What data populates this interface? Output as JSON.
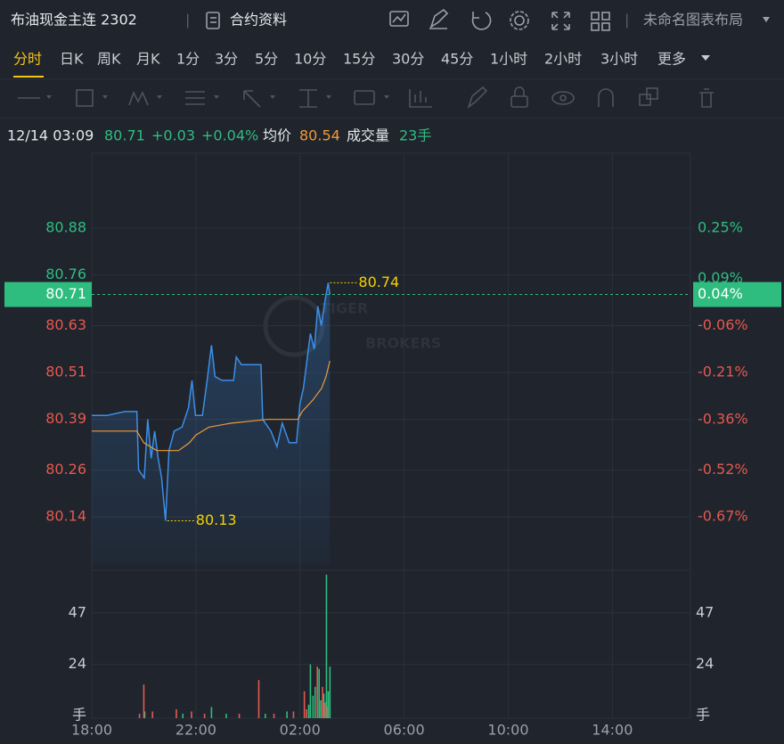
{
  "header": {
    "title": "布油现金主连 2302",
    "contract_info": "合约资料",
    "layout_name": "未命名图表布局"
  },
  "tabs": [
    "分时",
    "日K",
    "周K",
    "月K",
    "1分",
    "3分",
    "5分",
    "10分",
    "15分",
    "30分",
    "45分",
    "1小时",
    "2小时",
    "3小时",
    "更多"
  ],
  "active_tab": 0,
  "info": {
    "datetime": "12/14 03:09",
    "price": "80.71",
    "change": "+0.03",
    "change_percent": "+0.04%",
    "avg_label": "均价",
    "avg_price": "80.54",
    "volume_label": "成交量",
    "volume": "23手"
  },
  "chart_data": {
    "type": "line",
    "xlim": [
      "18:00",
      "17:00"
    ],
    "xticks": [
      "18:00",
      "22:00",
      "02:00",
      "06:00",
      "10:00",
      "14:00"
    ],
    "ylim": [
      80.017,
      81.072
    ],
    "yticks": [
      80.88,
      80.76,
      80.63,
      80.51,
      80.39,
      80.26,
      80.14
    ],
    "y2lim": [
      -0.823,
      0.489
    ],
    "y2ticks": [
      {
        "value": 0.25,
        "label": "0.25%"
      },
      {
        "value": 0.09,
        "label": "0.09%"
      },
      {
        "value": -0.06,
        "label": "-0.06%"
      },
      {
        "value": -0.21,
        "label": "-0.21%"
      },
      {
        "value": -0.36,
        "label": "-0.36%"
      },
      {
        "value": -0.52,
        "label": "-0.52%"
      },
      {
        "value": -0.67,
        "label": "-0.67%"
      }
    ],
    "grid": true,
    "series": [
      {
        "color": "#3b8fe8",
        "x": [
          "18:00",
          "18:35",
          "19:16",
          "19:44",
          "19:48",
          "20:01",
          "20:09",
          "20:17",
          "20:25",
          "20:33",
          "20:41",
          "20:50",
          "20:58",
          "21:10",
          "21:28",
          "21:43",
          "21:51",
          "21:59",
          "22:15",
          "22:26",
          "22:36",
          "22:44",
          "23:00",
          "23:27",
          "23:33",
          "23:45",
          "00:30",
          "00:34",
          "00:53",
          "01:07",
          "01:19",
          "01:35",
          "01:52",
          "02:00",
          "02:08",
          "02:16",
          "02:24",
          "02:33",
          "02:41",
          "02:49",
          "02:57",
          "03:05",
          "03:09"
        ],
        "values": [
          80.4,
          80.4,
          80.41,
          80.41,
          80.26,
          80.24,
          80.39,
          80.29,
          80.36,
          80.29,
          80.24,
          80.13,
          80.31,
          80.36,
          80.37,
          80.42,
          80.49,
          80.4,
          80.4,
          80.49,
          80.58,
          80.5,
          80.49,
          80.49,
          80.55,
          80.53,
          80.53,
          80.39,
          80.36,
          80.32,
          80.38,
          80.33,
          80.33,
          80.43,
          80.47,
          80.54,
          80.61,
          80.57,
          80.68,
          80.63,
          80.69,
          80.74,
          80.71
        ]
      },
      {
        "color": "#f09a36",
        "x": [
          "18:00",
          "19:44",
          "20:00",
          "20:30",
          "21:20",
          "21:45",
          "22:00",
          "22:30",
          "23:20",
          "00:45",
          "01:55",
          "02:05",
          "02:30",
          "02:50",
          "03:00",
          "03:09"
        ],
        "values": [
          80.36,
          80.36,
          80.33,
          80.31,
          80.31,
          80.33,
          80.35,
          80.37,
          80.38,
          80.39,
          80.39,
          80.41,
          80.44,
          80.47,
          80.5,
          80.54
        ]
      }
    ],
    "last_price": 80.71,
    "last_change": {
      "value": 0.04,
      "label": "0.04%"
    },
    "max_label": "80.74",
    "min_label": "80.13",
    "watermark": [
      "TIGER",
      "BROKERS"
    ],
    "volume": {
      "type": "bar",
      "ylim": [
        0,
        66
      ],
      "yticks": [
        {
          "value": 0,
          "label": "手"
        },
        24,
        47
      ],
      "series": [
        {
          "color": "#2fbd7f",
          "x": [
            "20:02",
            "21:30",
            "22:36",
            "23:10",
            "00:40",
            "01:30",
            "02:20",
            "02:24",
            "02:30",
            "02:35",
            "02:44",
            "02:48",
            "02:55",
            "03:01",
            "03:05",
            "03:09"
          ],
          "values": [
            3,
            2,
            5,
            2,
            2,
            3,
            6,
            24,
            10,
            14,
            22,
            8,
            11,
            64,
            12,
            23
          ]
        },
        {
          "color": "#e5594f",
          "x": [
            "19:50",
            "20:00",
            "20:20",
            "21:15",
            "21:50",
            "22:20",
            "23:40",
            "00:25",
            "01:00",
            "01:45",
            "02:10",
            "02:15",
            "02:40",
            "02:52",
            "02:58",
            "03:03"
          ],
          "values": [
            2,
            15,
            3,
            4,
            3,
            2,
            2,
            17,
            2,
            3,
            12,
            4,
            23,
            14,
            7,
            5
          ]
        }
      ]
    }
  }
}
